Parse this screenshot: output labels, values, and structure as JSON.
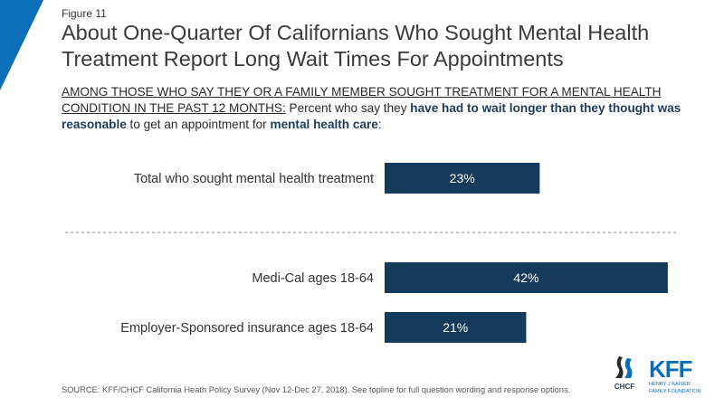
{
  "figure_label": "Figure 11",
  "title": "About One-Quarter Of Californians Who Sought Mental Health Treatment Report Long Wait Times For Appointments",
  "subtitle": {
    "underlined": "AMONG THOSE WHO SAY THEY OR A FAMILY MEMBER SOUGHT TREATMENT FOR A MENTAL HEALTH CONDITION IN THE PAST 12 MONTHS:",
    "part1": " Percent who say they ",
    "bold1": "have had to wait longer than they thought was reasonable",
    "part2": " to get an appointment for ",
    "bold2": "mental health care",
    "part3": ":"
  },
  "chart_data": {
    "type": "bar",
    "orientation": "horizontal",
    "categories": [
      "Total who sought mental health treatment",
      "Medi-Cal ages 18-64",
      "Employer-Sponsored insurance ages 18-64"
    ],
    "values": [
      23,
      42,
      21
    ],
    "data_labels": [
      "23%",
      "42%",
      "21%"
    ],
    "xlim": [
      0,
      100
    ],
    "bar_color": "#163a5c",
    "separator_after_index": 0
  },
  "footer": "SOURCE: KFF/CHCF California Heath Policy Survey (Nov 12-Dec 27, 2018). See topline for full question wording and response options.",
  "logos": {
    "chcf": "CHCF",
    "kff_big": "KFF",
    "kff_small_1": "HENRY J KAISER",
    "kff_small_2": "FAMILY FOUNDATION"
  },
  "colors": {
    "accent": "#0a6fb7",
    "bar": "#163a5c"
  }
}
